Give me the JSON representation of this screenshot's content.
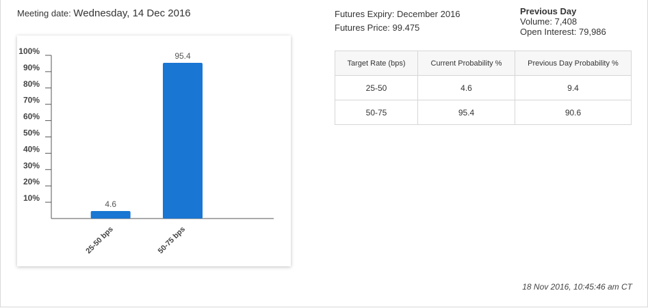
{
  "meeting": {
    "label": "Meeting date:",
    "date": "Wednesday, 14 Dec 2016"
  },
  "futures": {
    "expiry": "Futures Expiry: December 2016",
    "price": "Futures Price: 99.475"
  },
  "previous_day": {
    "title": "Previous Day",
    "volume": "Volume: 7,408",
    "open_interest": "Open Interest: 79,986"
  },
  "table": {
    "headers": [
      "Target Rate (bps)",
      "Current Probability %",
      "Previous Day Probability %"
    ],
    "rows": [
      [
        "25-50",
        "4.6",
        "9.4"
      ],
      [
        "50-75",
        "95.4",
        "90.6"
      ]
    ]
  },
  "timestamp": "18 Nov 2016, 10:45:46 am CT",
  "chart_data": {
    "type": "bar",
    "categories": [
      "25-50 bps",
      "50-75 bps"
    ],
    "values": [
      4.6,
      95.4
    ],
    "data_labels": [
      "4.6",
      "95.4"
    ],
    "y_ticks": [
      "10%",
      "20%",
      "30%",
      "40%",
      "50%",
      "60%",
      "70%",
      "80%",
      "90%",
      "100%"
    ],
    "ylim": [
      0,
      100
    ],
    "bar_color": "#1976d2",
    "grid": false
  }
}
